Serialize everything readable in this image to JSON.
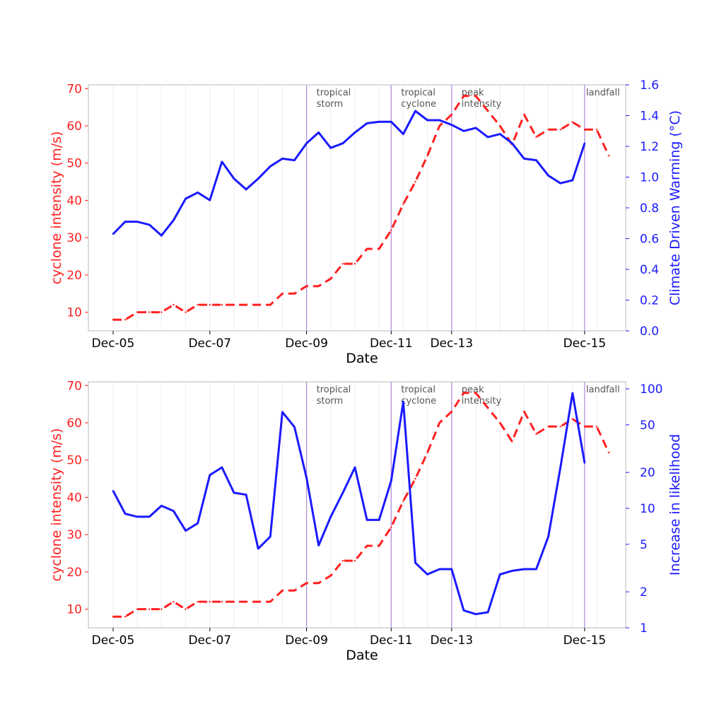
{
  "colors": {
    "intensity": "#ff2020",
    "secondary": "#1a1aff",
    "event_line": "#b38fd9",
    "grid": "#f0e8f4",
    "frame": "#bbbbbb",
    "text": "#000000"
  },
  "chart_data": [
    {
      "type": "line",
      "xlabel": "Date",
      "x_ticks": [
        "Dec-05",
        "Dec-07",
        "Dec-09",
        "Dec-11",
        "Dec-13",
        "Dec-15"
      ],
      "x_tick_positions": [
        0,
        8,
        16,
        23,
        28,
        39
      ],
      "ylabel_left": "cyclone intensity (m/s)",
      "ylabel_right": "Climate Driven Warming (°C)",
      "y_left_ticks": [
        "10",
        "20",
        "30",
        "40",
        "50",
        "60",
        "70"
      ],
      "y_right_ticks": [
        "0.0",
        "0.2",
        "0.4",
        "0.6",
        "0.8",
        "1.0",
        "1.2",
        "1.4",
        "1.6"
      ],
      "ylim_left": [
        5,
        71
      ],
      "ylim_right": [
        0,
        1.6
      ],
      "events": [
        {
          "x": 16,
          "line1": "tropical",
          "line2": "storm"
        },
        {
          "x": 23,
          "line1": "tropical",
          "line2": "cyclone"
        },
        {
          "x": 28,
          "line1": "peak",
          "line2": "intensity"
        },
        {
          "x": 39,
          "line1": "landfall",
          "line2": ""
        }
      ],
      "series": [
        {
          "axis": "left",
          "style": "dashed",
          "values": [
            8,
            8,
            10,
            10,
            10,
            12,
            10,
            12,
            12,
            12,
            12,
            12,
            12,
            12,
            15,
            15,
            17,
            17,
            19,
            23,
            23,
            27,
            27,
            32,
            39,
            45,
            52,
            60,
            63,
            68,
            68,
            64,
            60,
            55,
            63,
            57,
            59,
            59,
            61,
            59,
            59,
            52
          ]
        },
        {
          "axis": "right",
          "style": "solid",
          "values": [
            0.63,
            0.71,
            0.71,
            0.69,
            0.62,
            0.72,
            0.86,
            0.9,
            0.85,
            1.1,
            0.99,
            0.92,
            0.99,
            1.07,
            1.12,
            1.11,
            1.22,
            1.29,
            1.19,
            1.22,
            1.29,
            1.35,
            1.36,
            1.36,
            1.28,
            1.43,
            1.37,
            1.37,
            1.34,
            1.3,
            1.32,
            1.26,
            1.28,
            1.22,
            1.12,
            1.11,
            1.01,
            0.96,
            0.98,
            1.22
          ]
        }
      ]
    },
    {
      "type": "line",
      "xlabel": "Date",
      "x_ticks": [
        "Dec-05",
        "Dec-07",
        "Dec-09",
        "Dec-11",
        "Dec-13",
        "Dec-15"
      ],
      "x_tick_positions": [
        0,
        8,
        16,
        23,
        28,
        39
      ],
      "ylabel_left": "cyclone intensity (m/s)",
      "ylabel_right": "Increase in likelihood",
      "y_left_ticks": [
        "10",
        "20",
        "30",
        "40",
        "50",
        "60",
        "70"
      ],
      "y_right_ticks": [
        "1",
        "2",
        "5",
        "10",
        "20",
        "50",
        "100"
      ],
      "y_right_tick_values": [
        1,
        2,
        5,
        10,
        20,
        50,
        100
      ],
      "y_right_scale": "log",
      "ylim_left": [
        5,
        71
      ],
      "ylim_right": [
        1,
        100
      ],
      "events": [
        {
          "x": 16,
          "line1": "tropical",
          "line2": "storm"
        },
        {
          "x": 23,
          "line1": "tropical",
          "line2": "cyclone"
        },
        {
          "x": 28,
          "line1": "peak",
          "line2": "intensity"
        },
        {
          "x": 39,
          "line1": "landfall",
          "line2": ""
        }
      ],
      "series": [
        {
          "axis": "left",
          "style": "dashed",
          "values": [
            8,
            8,
            10,
            10,
            10,
            12,
            10,
            12,
            12,
            12,
            12,
            12,
            12,
            12,
            15,
            15,
            17,
            17,
            19,
            23,
            23,
            27,
            27,
            32,
            39,
            45,
            52,
            60,
            63,
            68,
            68,
            64,
            60,
            55,
            63,
            57,
            59,
            59,
            61,
            59,
            59,
            52
          ]
        },
        {
          "axis": "right",
          "style": "solid",
          "values": [
            14,
            9,
            8.5,
            8.5,
            10.5,
            9.5,
            6.5,
            7.5,
            19,
            22,
            13.5,
            13,
            4.6,
            5.8,
            64,
            48,
            18,
            4.9,
            8.5,
            13.5,
            22,
            8,
            8,
            17,
            78,
            3.5,
            2.8,
            3.1,
            3.1,
            1.4,
            1.3,
            1.35,
            2.8,
            3.0,
            3.1,
            3.1,
            5.8,
            22,
            92,
            24
          ]
        }
      ]
    }
  ]
}
